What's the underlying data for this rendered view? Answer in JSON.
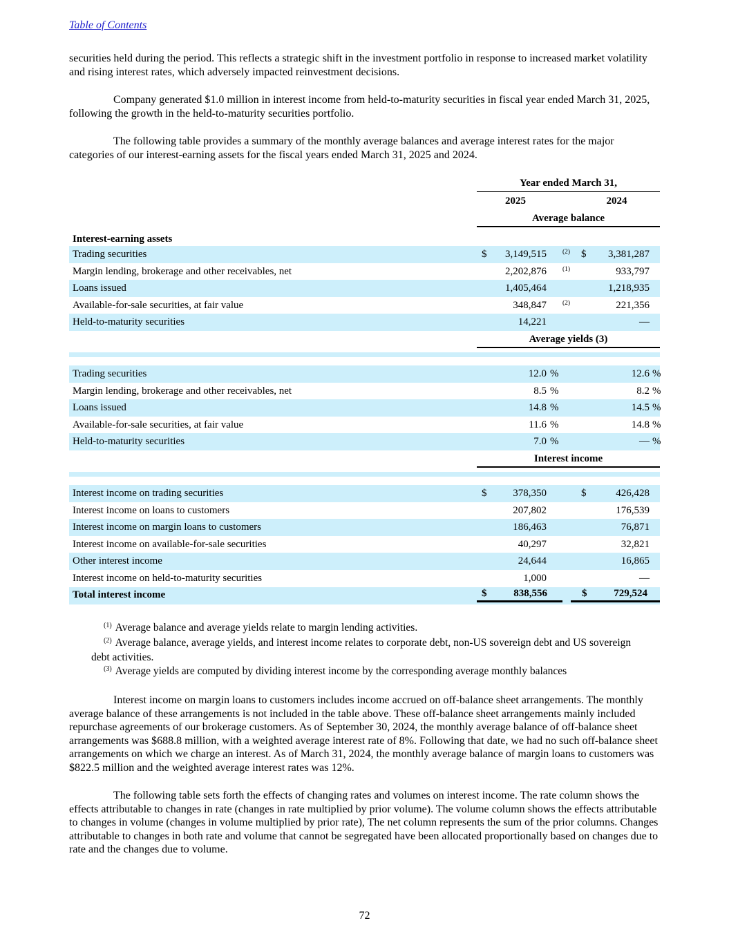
{
  "page": {
    "toc_link_label": "Table of Contents",
    "page_number": "72"
  },
  "paragraphs": {
    "p1": "securities held during the period. This reflects a strategic shift in the investment portfolio in response to increased market volatility and rising interest rates, which adversely impacted reinvestment decisions.",
    "p2": "Company generated $1.0 million in interest income from held-to-maturity securities in fiscal year ended March 31, 2025, following the growth in the held-to-maturity securities portfolio.",
    "p3": "The following table provides a summary of the monthly average balances and average interest rates for the major categories of our interest-earning assets for the fiscal years ended March 31, 2025 and 2024.",
    "p4": "Interest income on margin loans to customers includes income accrued on off-balance sheet arrangements. The monthly average balance of these arrangements is not included in the table above. These off-balance sheet arrangements mainly included repurchase agreements of our brokerage customers. As of September 30, 2024, the monthly average balance of off-balance sheet arrangements was $688.8 million, with a weighted average interest rate of 8%. Following that date, we had no such off-balance sheet arrangements on which we charge an interest. As of March 31, 2024, the monthly average balance of margin loans to customers was $822.5 million and the weighted average interest rates was 12%.",
    "p5": "The following table sets forth the effects of changing rates and volumes on interest income. The rate column shows the effects attributable to changes in rate (changes in rate multiplied by prior volume). The volume column shows the effects attributable to changes in volume (changes in volume multiplied by prior rate), The net column represents the sum of the prior columns. Changes attributable to changes in both rate and volume that cannot be segregated have been allocated proportionally based on changes due to rate and the changes due to volume."
  },
  "table": {
    "span_header": "Year ended March 31,",
    "year_2025": "2025",
    "year_2024": "2024",
    "balance_header": "Average balance",
    "yields_header": "Average yields (3)",
    "income_header": "Interest income",
    "assets_label": "Interest-earning assets",
    "balance_rows": [
      {
        "label": "Trading securities",
        "cur1": "$",
        "v1": "3,149,515",
        "fn": "(2)",
        "cur2": "$",
        "v2": "3,381,287"
      },
      {
        "label": "Margin lending, brokerage and other receivables, net",
        "cur1": "",
        "v1": "2,202,876",
        "fn": "(1)",
        "cur2": "",
        "v2": "933,797"
      },
      {
        "label": "Loans issued",
        "cur1": "",
        "v1": "1,405,464",
        "fn": "",
        "cur2": "",
        "v2": "1,218,935"
      },
      {
        "label": "Available-for-sale securities, at fair value",
        "cur1": "",
        "v1": "348,847",
        "fn": "(2)",
        "cur2": "",
        "v2": "221,356"
      },
      {
        "label": "Held-to-maturity securities",
        "cur1": "",
        "v1": "14,221",
        "fn": "",
        "cur2": "",
        "v2": "—"
      }
    ],
    "yield_rows": [
      {
        "label": "Trading securities",
        "v1": "12.0",
        "u1": "%",
        "v2": "12.6",
        "u2": "%"
      },
      {
        "label": "Margin lending, brokerage and other receivables, net",
        "v1": "8.5",
        "u1": "%",
        "v2": "8.2",
        "u2": "%"
      },
      {
        "label": "Loans issued",
        "v1": "14.8",
        "u1": "%",
        "v2": "14.5",
        "u2": "%"
      },
      {
        "label": "Available-for-sale securities, at fair value",
        "v1": "11.6",
        "u1": "%",
        "v2": "14.8",
        "u2": "%"
      },
      {
        "label": "Held-to-maturity securities",
        "v1": "7.0",
        "u1": "%",
        "v2": "—",
        "u2": "%"
      }
    ],
    "income_rows": [
      {
        "label": "Interest income on trading securities",
        "cur1": "$",
        "v1": "378,350",
        "cur2": "$",
        "v2": "426,428"
      },
      {
        "label": "Interest income on loans to customers",
        "cur1": "",
        "v1": "207,802",
        "cur2": "",
        "v2": "176,539"
      },
      {
        "label": "Interest income on margin loans to customers",
        "cur1": "",
        "v1": "186,463",
        "cur2": "",
        "v2": "76,871"
      },
      {
        "label": "Interest income on available-for-sale securities",
        "cur1": "",
        "v1": "40,297",
        "cur2": "",
        "v2": "32,821"
      },
      {
        "label": "Other interest income",
        "cur1": "",
        "v1": "24,644",
        "cur2": "",
        "v2": "16,865"
      },
      {
        "label": "Interest income on held-to-maturity securities",
        "cur1": "",
        "v1": "1,000",
        "cur2": "",
        "v2": "—"
      }
    ],
    "total_row": {
      "label": "Total interest income",
      "cur1": "$",
      "v1": "838,556",
      "cur2": "$",
      "v2": "729,524"
    }
  },
  "footnotes": [
    {
      "marker": "(1)",
      "text": "Average balance and average yields relate to margin lending activities."
    },
    {
      "marker": "(2)",
      "text": "Average balance, average yields, and interest income relates to corporate debt, non-US sovereign debt and US sovereign debt activities."
    },
    {
      "marker": "(3)",
      "text": "Average yields are computed by dividing interest income by the corresponding average monthly balances"
    }
  ],
  "colors": {
    "row_highlight": "#CDEFFB",
    "link": "#2222CC",
    "text": "#000000",
    "background": "#FFFFFF"
  }
}
